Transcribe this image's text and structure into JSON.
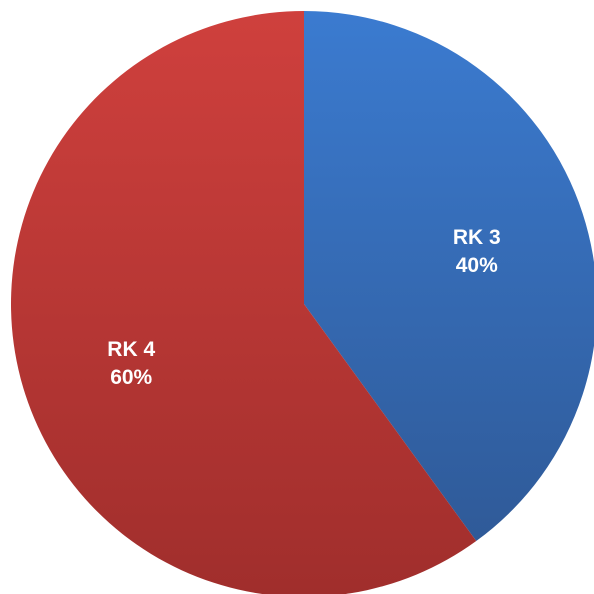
{
  "chart_data": {
    "type": "pie",
    "title": "",
    "slices": [
      {
        "label": "RK 3",
        "value": 40,
        "value_label": "40%",
        "color": "#3a6fb8"
      },
      {
        "label": "RK 4",
        "value": 60,
        "value_label": "60%",
        "color": "#b83433"
      }
    ],
    "start_angle_deg": 0,
    "direction": "clockwise",
    "legend": "none"
  }
}
